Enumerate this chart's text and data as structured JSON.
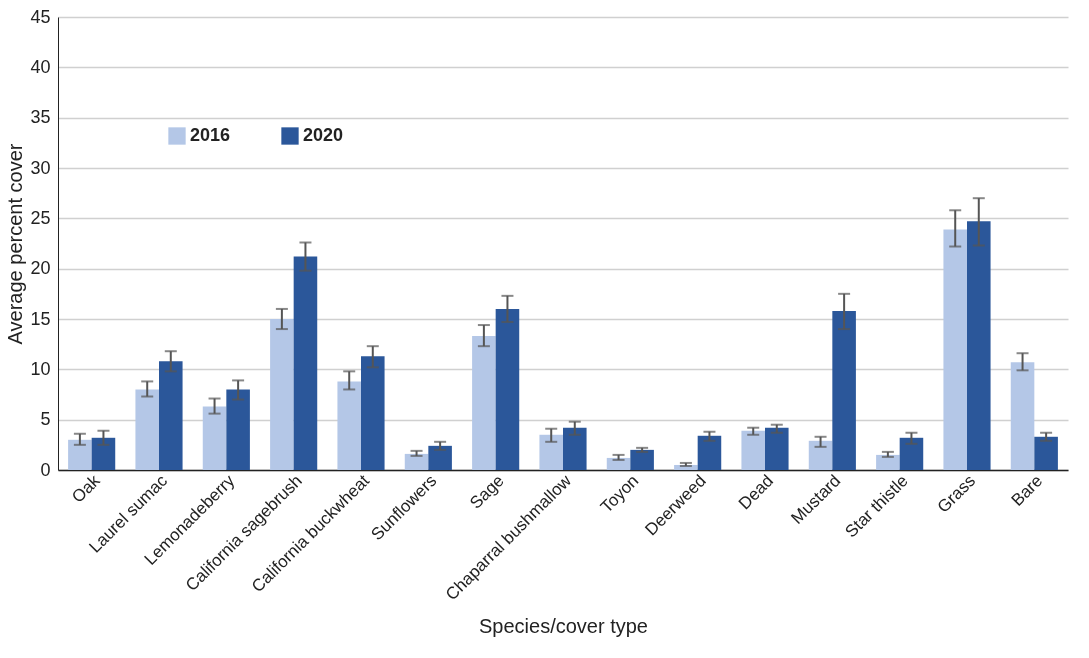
{
  "chart_data": {
    "type": "bar",
    "xlabel": "Species/cover type",
    "ylabel": "Average percent cover",
    "categories": [
      "Oak",
      "Laurel sumac",
      "Lemonadeberry",
      "California sagebrush",
      "California buckwheat",
      "Sunflowers",
      "Sage",
      "Chaparral bushmallow",
      "Toyon",
      "Deerweed",
      "Dead",
      "Mustard",
      "Star thistle",
      "Grass",
      "Bare"
    ],
    "series": [
      {
        "name": "2016",
        "color": "#b4c7e7",
        "values": [
          3.0,
          8.0,
          6.3,
          15.0,
          8.8,
          1.6,
          13.3,
          3.5,
          1.2,
          0.5,
          3.9,
          2.9,
          1.5,
          23.9,
          10.7
        ],
        "errors": [
          [
            2.5,
            3.6
          ],
          [
            7.3,
            8.8
          ],
          [
            5.6,
            7.1
          ],
          [
            14.0,
            16.0
          ],
          [
            8.0,
            9.8
          ],
          [
            1.4,
            1.9
          ],
          [
            12.3,
            14.4
          ],
          [
            2.8,
            4.1
          ],
          [
            1.0,
            1.5
          ],
          [
            0.4,
            0.7
          ],
          [
            3.5,
            4.2
          ],
          [
            2.3,
            3.3
          ],
          [
            1.3,
            1.8
          ],
          [
            22.2,
            25.8
          ],
          [
            9.9,
            11.6
          ]
        ]
      },
      {
        "name": "2020",
        "color": "#2b579a",
        "values": [
          3.2,
          10.8,
          8.0,
          21.2,
          11.3,
          2.4,
          16.0,
          4.2,
          2.0,
          3.4,
          4.2,
          15.8,
          3.2,
          24.7,
          3.3
        ],
        "errors": [
          [
            2.5,
            3.9
          ],
          [
            9.8,
            11.8
          ],
          [
            7.0,
            8.9
          ],
          [
            19.8,
            22.6
          ],
          [
            10.2,
            12.3
          ],
          [
            2.0,
            2.8
          ],
          [
            14.7,
            17.3
          ],
          [
            3.5,
            4.8
          ],
          [
            1.8,
            2.2
          ],
          [
            2.9,
            3.8
          ],
          [
            3.7,
            4.5
          ],
          [
            14.0,
            17.5
          ],
          [
            2.6,
            3.7
          ],
          [
            22.3,
            27.0
          ],
          [
            2.9,
            3.7
          ]
        ]
      }
    ],
    "ylim": [
      0,
      45
    ],
    "yticks": [
      0,
      5,
      10,
      15,
      20,
      25,
      30,
      35,
      40,
      45
    ],
    "grid": "y",
    "legend": "top left"
  }
}
